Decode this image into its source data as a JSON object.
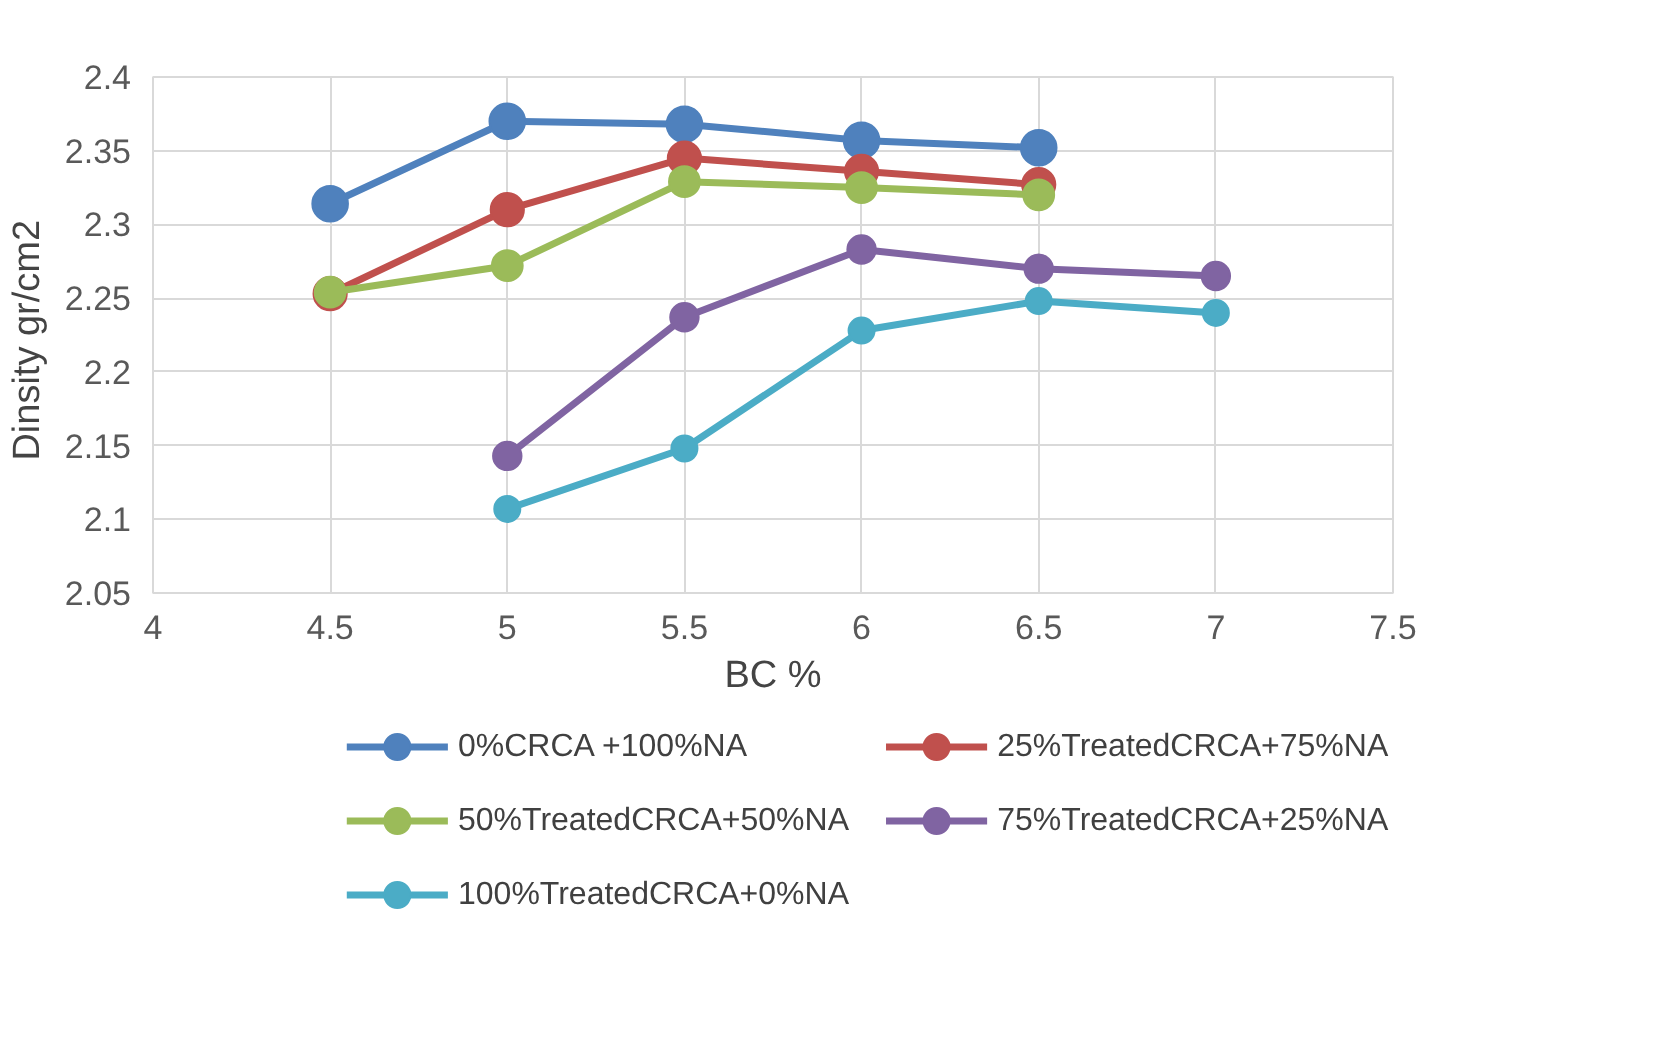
{
  "chart_data": {
    "type": "line",
    "xlabel": "BC %",
    "ylabel": "Dinsity  gr/cm2",
    "xlim": [
      4,
      7.5
    ],
    "ylim": [
      2.05,
      2.4
    ],
    "xticks": [
      4,
      4.5,
      5,
      5.5,
      6,
      6.5,
      7,
      7.5
    ],
    "yticks": [
      2.05,
      2.1,
      2.15,
      2.2,
      2.25,
      2.3,
      2.35,
      2.4
    ],
    "grid": true,
    "legend": "bottom",
    "marker": "circle",
    "line_style": "solid",
    "series": [
      {
        "name": "0%CRCA +100%NA",
        "color": "#4f81bd",
        "x": [
          4.5,
          5,
          5.5,
          6,
          6.5
        ],
        "values": [
          2.314,
          2.37,
          2.368,
          2.357,
          2.352
        ]
      },
      {
        "name": "25%TreatedCRCA+75%NA",
        "color": "#c0504d",
        "x": [
          4.5,
          5,
          5.5,
          6,
          6.5
        ],
        "values": [
          2.253,
          2.31,
          2.345,
          2.336,
          2.327
        ]
      },
      {
        "name": "50%TreatedCRCA+50%NA",
        "color": "#9bbb59",
        "x": [
          4.5,
          5,
          5.5,
          6,
          6.5
        ],
        "values": [
          2.254,
          2.272,
          2.329,
          2.325,
          2.32
        ]
      },
      {
        "name": "75%TreatedCRCA+25%NA",
        "color": "#8064a2",
        "x": [
          5,
          5.5,
          6,
          6.5,
          7
        ],
        "values": [
          2.143,
          2.237,
          2.283,
          2.27,
          2.265
        ]
      },
      {
        "name": "100%TreatedCRCA+0%NA",
        "color": "#4bacc6",
        "x": [
          5,
          5.5,
          6,
          6.5,
          7
        ],
        "values": [
          2.107,
          2.148,
          2.228,
          2.248,
          2.24
        ]
      }
    ]
  }
}
